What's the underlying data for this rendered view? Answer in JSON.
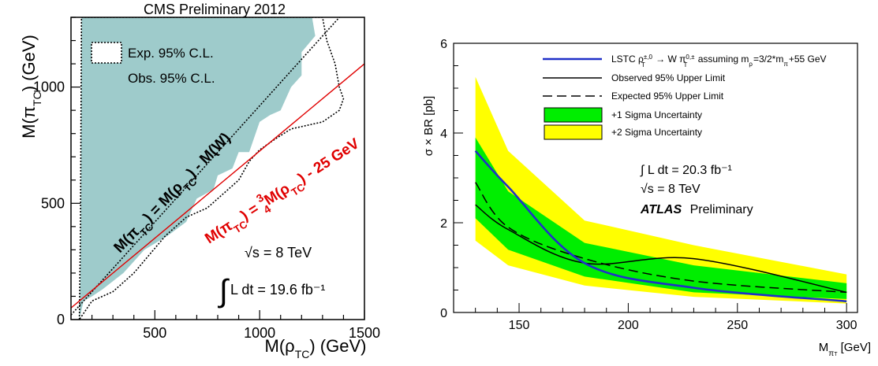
{
  "left_plot": {
    "header": "CMS Preliminary 2012",
    "xlabel": "M(ρ_TC) (GeV)",
    "ylabel": "M(π_TC) (GeV)",
    "legend": [
      "Exp. 95% C.L.",
      "Obs. 95% C.L."
    ],
    "line_black_label": "M(π_TC) = M(ρ_TC) - M(W)",
    "line_red_label": "M(π_TC) = ¾M(ρ_TC) - 25 GeV",
    "sqrt_s": "√s = 8 TeV",
    "lumi": "L dt = 19.6 fb⁻¹",
    "colors": {
      "obs_fill": "#9ecbcb",
      "red_line": "#e00000"
    }
  },
  "right_plot": {
    "ylabel": "σ × BR  [pb]",
    "xlabel": "M_πT [GeV]",
    "legend": [
      "LSTC ρT±,0 → W πT0,± assuming mρT=3/2*mπT+55 GeV",
      "Observed 95% Upper Limit",
      "Expected 95% Upper Limit",
      "+1 Sigma Uncertainty",
      "+2 Sigma Uncertainty"
    ],
    "lumi": "∫ L dt = 20.3 fb⁻¹",
    "sqrt_s": "√s = 8 TeV",
    "atlas_bold": "ATLAS",
    "atlas_rest": "Preliminary",
    "colors": {
      "theory": "#2030c8",
      "band1": "#00ee00",
      "band2": "#ffff00"
    }
  },
  "chart_data": [
    {
      "type": "area",
      "title": "CMS Preliminary 2012",
      "xlabel": "M(ρ_TC) (GeV)",
      "ylabel": "M(π_TC) (GeV)",
      "xlim": [
        100,
        1500
      ],
      "ylim": [
        0,
        1300
      ],
      "x_ticks": [
        500,
        1000,
        1500
      ],
      "y_ticks": [
        0,
        500,
        1000
      ],
      "expected_limit_boundary": [
        [
          140,
          0
        ],
        [
          145,
          380
        ],
        [
          150,
          1300
        ],
        [
          1300,
          1300
        ],
        [
          1320,
          1200
        ],
        [
          1360,
          1100
        ],
        [
          1380,
          1000
        ],
        [
          1400,
          950
        ],
        [
          1380,
          900
        ],
        [
          1300,
          850
        ],
        [
          1150,
          820
        ],
        [
          1080,
          780
        ],
        [
          1000,
          730
        ],
        [
          950,
          680
        ],
        [
          900,
          600
        ],
        [
          850,
          560
        ],
        [
          800,
          520
        ],
        [
          750,
          480
        ],
        [
          650,
          440
        ],
        [
          550,
          360
        ],
        [
          400,
          200
        ],
        [
          300,
          120
        ],
        [
          200,
          80
        ],
        [
          140,
          0
        ]
      ],
      "observed_limit_boundary": [
        [
          140,
          0
        ],
        [
          145,
          200
        ],
        [
          150,
          1300
        ],
        [
          1250,
          1300
        ],
        [
          1265,
          1220
        ],
        [
          1200,
          1150
        ],
        [
          1200,
          1050
        ],
        [
          1150,
          1000
        ],
        [
          1100,
          900
        ],
        [
          1050,
          880
        ],
        [
          1000,
          850
        ],
        [
          950,
          720
        ],
        [
          900,
          720
        ],
        [
          870,
          650
        ],
        [
          800,
          620
        ],
        [
          780,
          560
        ],
        [
          700,
          520
        ],
        [
          650,
          420
        ],
        [
          560,
          360
        ],
        [
          450,
          300
        ],
        [
          350,
          200
        ],
        [
          250,
          130
        ],
        [
          200,
          100
        ],
        [
          160,
          80
        ],
        [
          140,
          0
        ]
      ],
      "lines": [
        {
          "label": "M(π_TC) = M(ρ_TC) - M(W)",
          "slope": 1.0,
          "intercept": -80.4
        },
        {
          "label": "M(π_TC) = ¾M(ρ_TC) - 25 GeV",
          "slope": 0.75,
          "intercept": -25
        }
      ]
    },
    {
      "type": "line",
      "xlabel": "M_πT [GeV]",
      "ylabel": "σ × BR  [pb]",
      "xlim": [
        120,
        305
      ],
      "ylim": [
        0,
        6
      ],
      "x_ticks": [
        150,
        200,
        250,
        300
      ],
      "y_ticks": [
        0,
        2,
        4,
        6
      ],
      "x": [
        130,
        145,
        180,
        230,
        300
      ],
      "series": [
        {
          "name": "LSTC ρT±,0 → W πT0,± assuming mρT=3/2*mπT+55 GeV",
          "values": [
            3.6,
            2.8,
            1.1,
            0.55,
            0.25
          ]
        },
        {
          "name": "Observed 95% Upper Limit",
          "values": [
            2.4,
            1.85,
            1.1,
            1.2,
            0.45
          ]
        },
        {
          "name": "Expected 95% Upper Limit",
          "values": [
            2.9,
            1.9,
            1.2,
            0.7,
            0.45
          ]
        },
        {
          "name": "+1 Sigma Uncertainty",
          "lower": [
            2.1,
            1.4,
            0.8,
            0.45,
            0.3
          ],
          "upper": [
            3.9,
            2.7,
            1.55,
            1.05,
            0.65
          ]
        },
        {
          "name": "+2 Sigma Uncertainty",
          "lower": [
            1.6,
            1.05,
            0.6,
            0.35,
            0.2
          ],
          "upper": [
            5.25,
            3.6,
            2.05,
            1.5,
            0.85
          ]
        }
      ]
    }
  ]
}
